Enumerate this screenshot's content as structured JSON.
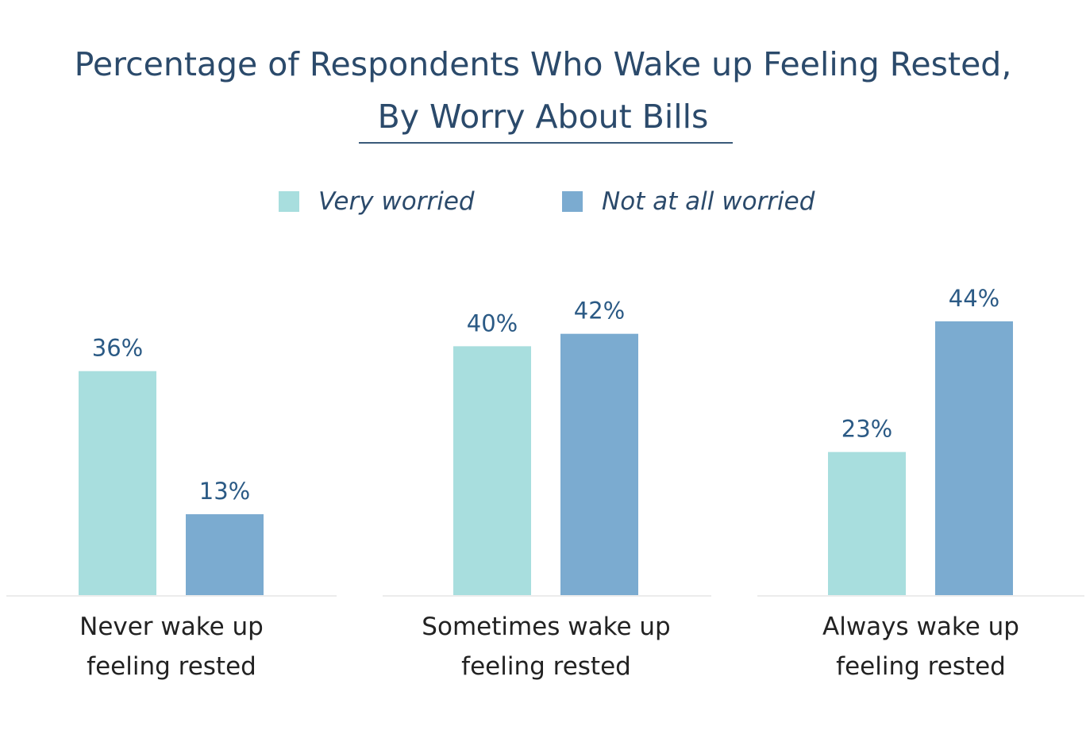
{
  "chart_data": {
    "type": "bar",
    "title_lines": [
      "Percentage of Respondents Who Wake up Feeling Rested,",
      "By  Worry About Bills"
    ],
    "categories": [
      [
        "Never wake up",
        "feeling rested"
      ],
      [
        "Sometimes wake up",
        "feeling rested"
      ],
      [
        "Always wake up",
        "feeling rested"
      ]
    ],
    "series": [
      {
        "name": "Very worried",
        "values": [
          36,
          40,
          23
        ],
        "labels": [
          "36%",
          "40%",
          "23%"
        ],
        "color": "#a8dede"
      },
      {
        "name": "Not at all worried",
        "values": [
          13,
          42,
          44
        ],
        "labels": [
          "13%",
          "42%",
          "44%"
        ],
        "color": "#7babd0"
      }
    ],
    "ylim": [
      0,
      44
    ],
    "legend_position": "top",
    "grid": false,
    "label_color": "#2b5a85"
  }
}
